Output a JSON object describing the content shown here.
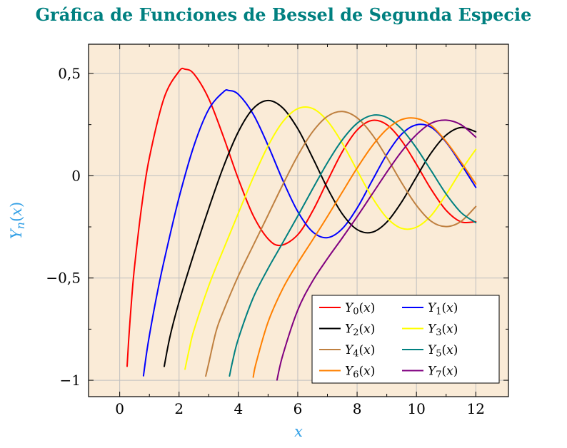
{
  "chart_data": {
    "type": "line",
    "title": "Gráfica de Funciones de Bessel de Segunda Especie",
    "title_color": "#008080",
    "xlabel": "x",
    "ylabel": "Y_n(x)",
    "axis_label_color": "#33a0e6",
    "plot_background": "#faebd7",
    "grid": true,
    "grid_color": "#bfbfbf",
    "frame_color": "#000000",
    "tick_label_color": "#000000",
    "xlim": [
      -1.05,
      13.1
    ],
    "ylim": [
      -1.08,
      0.643
    ],
    "x_ticks": {
      "values": [
        0,
        2,
        4,
        6,
        8,
        10,
        12
      ],
      "labels": [
        "0",
        "2",
        "4",
        "6",
        "8",
        "10",
        "12"
      ]
    },
    "y_ticks": {
      "values": [
        0.5,
        0,
        -0.5,
        -1
      ],
      "labels": [
        "0,5",
        "0",
        "−0,5",
        "−1"
      ]
    },
    "x_minor_ticks": [
      1,
      3,
      5,
      7,
      9,
      11
    ],
    "y_minor_ticks": [
      -0.75,
      -0.25,
      0.25
    ],
    "legend": {
      "position": "south east",
      "background": "#ffffff",
      "border_color": "#000000",
      "columns": 2,
      "entries": [
        "Y_0(x)",
        "Y_1(x)",
        "Y_2(x)",
        "Y_3(x)",
        "Y_4(x)",
        "Y_5(x)",
        "Y_6(x)",
        "Y_7(x)"
      ]
    },
    "series": [
      {
        "label": "Y_0(x)",
        "color": "#ff0000",
        "points": [
          [
            0.25,
            -0.9316
          ],
          [
            0.3,
            -0.8073
          ],
          [
            0.4,
            -0.606
          ],
          [
            0.5,
            -0.4445
          ],
          [
            0.75,
            -0.1387
          ],
          [
            1.0,
            0.0883
          ],
          [
            1.5,
            0.3824
          ],
          [
            2.0,
            0.5104
          ],
          [
            2.2,
            0.5208
          ],
          [
            2.5,
            0.4981
          ],
          [
            3.0,
            0.3769
          ],
          [
            3.5,
            0.189
          ],
          [
            4.0,
            -0.0169
          ],
          [
            4.5,
            -0.1947
          ],
          [
            5.0,
            -0.3085
          ],
          [
            5.43,
            -0.3403
          ],
          [
            6.0,
            -0.2882
          ],
          [
            6.5,
            -0.1732
          ],
          [
            7.0,
            -0.0259
          ],
          [
            7.5,
            0.1173
          ],
          [
            8.0,
            0.2235
          ],
          [
            8.5,
            0.2702
          ],
          [
            9.0,
            0.2499
          ],
          [
            9.5,
            0.1712
          ],
          [
            10.0,
            0.0557
          ],
          [
            10.5,
            -0.0675
          ],
          [
            11.0,
            -0.1688
          ],
          [
            11.5,
            -0.2252
          ],
          [
            12.0,
            -0.2245
          ]
        ]
      },
      {
        "label": "Y_1(x)",
        "color": "#0000ff",
        "points": [
          [
            0.8,
            -0.9781
          ],
          [
            0.9,
            -0.8731
          ],
          [
            1.0,
            -0.7812
          ],
          [
            1.25,
            -0.5844
          ],
          [
            1.5,
            -0.4123
          ],
          [
            2.0,
            -0.107
          ],
          [
            2.5,
            0.1459
          ],
          [
            3.0,
            0.3247
          ],
          [
            3.5,
            0.4102
          ],
          [
            3.68,
            0.4167
          ],
          [
            4.0,
            0.3979
          ],
          [
            4.5,
            0.301
          ],
          [
            5.0,
            0.1479
          ],
          [
            5.5,
            -0.0238
          ],
          [
            6.0,
            -0.175
          ],
          [
            6.5,
            -0.2741
          ],
          [
            7.0,
            -0.3027
          ],
          [
            7.5,
            -0.2591
          ],
          [
            8.0,
            -0.1581
          ],
          [
            8.5,
            -0.0262
          ],
          [
            9.0,
            0.1043
          ],
          [
            9.5,
            0.2032
          ],
          [
            10.0,
            0.249
          ],
          [
            10.5,
            0.2364
          ],
          [
            11.0,
            0.1637
          ],
          [
            11.5,
            0.0579
          ],
          [
            12.0,
            -0.0571
          ]
        ]
      },
      {
        "label": "Y_2(x)",
        "color": "#000000",
        "points": [
          [
            1.5,
            -0.9322
          ],
          [
            1.7,
            -0.783
          ],
          [
            2.0,
            -0.6174
          ],
          [
            2.5,
            -0.3813
          ],
          [
            3.0,
            -0.1604
          ],
          [
            3.5,
            0.0454
          ],
          [
            4.0,
            0.2159
          ],
          [
            4.5,
            0.3285
          ],
          [
            5.0,
            0.3677
          ],
          [
            5.5,
            0.3308
          ],
          [
            6.0,
            0.2299
          ],
          [
            6.5,
            0.0889
          ],
          [
            7.0,
            -0.0605
          ],
          [
            7.5,
            -0.1864
          ],
          [
            8.0,
            -0.263
          ],
          [
            8.5,
            -0.2764
          ],
          [
            9.0,
            -0.2268
          ],
          [
            9.5,
            -0.1284
          ],
          [
            10.0,
            -0.0059
          ],
          [
            10.5,
            0.1126
          ],
          [
            11.0,
            0.1986
          ],
          [
            11.5,
            0.2359
          ],
          [
            12.0,
            0.215
          ]
        ]
      },
      {
        "label": "Y_3(x)",
        "color": "#ffff00",
        "points": [
          [
            2.2,
            -0.9458
          ],
          [
            2.35,
            -0.844
          ],
          [
            2.5,
            -0.756
          ],
          [
            3.0,
            -0.5385
          ],
          [
            3.5,
            -0.3583
          ],
          [
            4.0,
            -0.182
          ],
          [
            4.5,
            -0.009
          ],
          [
            5.0,
            0.1463
          ],
          [
            5.5,
            0.2644
          ],
          [
            6.0,
            0.3282
          ],
          [
            6.5,
            0.3288
          ],
          [
            7.0,
            0.2681
          ],
          [
            7.5,
            0.1597
          ],
          [
            8.0,
            0.0265
          ],
          [
            8.5,
            -0.1039
          ],
          [
            9.0,
            -0.2051
          ],
          [
            9.5,
            -0.2572
          ],
          [
            10.0,
            -0.2514
          ],
          [
            10.5,
            -0.1936
          ],
          [
            11.0,
            -0.0915
          ],
          [
            11.5,
            0.0241
          ],
          [
            12.0,
            0.1288
          ]
        ]
      },
      {
        "label": "Y_4(x)",
        "color": "#bf8040",
        "points": [
          [
            2.9,
            -0.9797
          ],
          [
            3.0,
            -0.9167
          ],
          [
            3.25,
            -0.7594
          ],
          [
            3.5,
            -0.6597
          ],
          [
            4.0,
            -0.4889
          ],
          [
            4.5,
            -0.3405
          ],
          [
            5.0,
            -0.1921
          ],
          [
            5.5,
            -0.0424
          ],
          [
            6.0,
            0.0984
          ],
          [
            6.5,
            0.2146
          ],
          [
            7.0,
            0.2903
          ],
          [
            7.5,
            0.3142
          ],
          [
            8.0,
            0.2829
          ],
          [
            8.5,
            0.203
          ],
          [
            9.0,
            0.09
          ],
          [
            9.5,
            -0.034
          ],
          [
            10.0,
            -0.145
          ],
          [
            10.5,
            -0.2232
          ],
          [
            11.0,
            -0.2485
          ],
          [
            11.5,
            -0.2233
          ],
          [
            12.0,
            -0.1506
          ]
        ]
      },
      {
        "label": "Y_5(x)",
        "color": "#008080",
        "points": [
          [
            3.7,
            -0.9787
          ],
          [
            3.8,
            -0.91
          ],
          [
            4.0,
            -0.7959
          ],
          [
            4.5,
            -0.5963
          ],
          [
            5.0,
            -0.4537
          ],
          [
            5.5,
            -0.3261
          ],
          [
            6.0,
            -0.197
          ],
          [
            6.5,
            -0.0647
          ],
          [
            7.0,
            0.0637
          ],
          [
            7.5,
            0.1754
          ],
          [
            8.0,
            0.2564
          ],
          [
            8.5,
            0.295
          ],
          [
            9.0,
            0.2851
          ],
          [
            9.5,
            0.2286
          ],
          [
            10.0,
            0.1354
          ],
          [
            10.5,
            0.0235
          ],
          [
            11.0,
            -0.0892
          ],
          [
            11.5,
            -0.1795
          ],
          [
            12.0,
            -0.2292
          ]
        ]
      },
      {
        "label": "Y_6(x)",
        "color": "#ff8000",
        "points": [
          [
            4.5,
            -0.9847
          ],
          [
            4.6,
            -0.9136
          ],
          [
            5.0,
            -0.7152
          ],
          [
            5.5,
            -0.5505
          ],
          [
            6.0,
            -0.4268
          ],
          [
            6.5,
            -0.3141
          ],
          [
            7.0,
            -0.1993
          ],
          [
            7.5,
            -0.0803
          ],
          [
            8.0,
            0.0376
          ],
          [
            8.5,
            0.144
          ],
          [
            9.0,
            0.2268
          ],
          [
            9.5,
            0.2747
          ],
          [
            10.0,
            0.2804
          ],
          [
            10.5,
            0.2456
          ],
          [
            11.0,
            0.1674
          ],
          [
            11.5,
            0.0672
          ],
          [
            12.0,
            -0.0404
          ]
        ]
      },
      {
        "label": "Y_7(x)",
        "color": "#800080",
        "points": [
          [
            5.3,
            -0.9984
          ],
          [
            5.5,
            -0.8749
          ],
          [
            6.0,
            -0.6566
          ],
          [
            6.5,
            -0.5152
          ],
          [
            7.0,
            -0.4054
          ],
          [
            7.5,
            -0.3039
          ],
          [
            8.0,
            -0.2001
          ],
          [
            8.5,
            -0.0917
          ],
          [
            9.0,
            0.0172
          ],
          [
            9.5,
            0.1184
          ],
          [
            10.0,
            0.201
          ],
          [
            10.5,
            0.2571
          ],
          [
            11.0,
            0.2718
          ],
          [
            11.5,
            0.2496
          ],
          [
            12.0,
            0.1888
          ]
        ]
      }
    ]
  }
}
